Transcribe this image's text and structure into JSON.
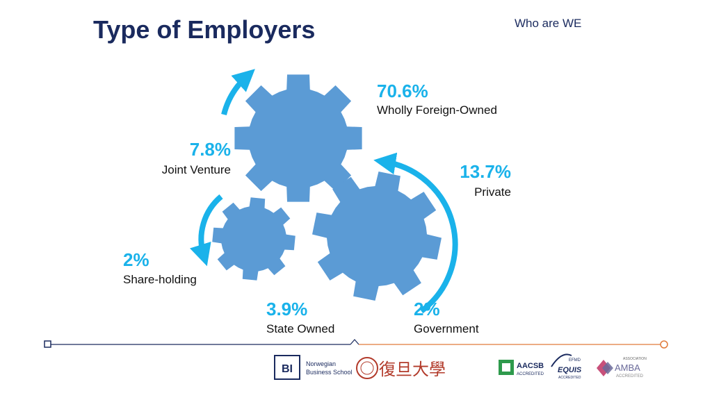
{
  "header": {
    "title": "Type of Employers",
    "section": "Who are WE"
  },
  "segments": [
    {
      "value": "70.6%",
      "label": "Wholly Foreign-Owned"
    },
    {
      "value": "13.7%",
      "label": "Private"
    },
    {
      "value": "7.8%",
      "label": "Joint Venture"
    },
    {
      "value": "2%",
      "label": "Share-holding"
    },
    {
      "value": "3.9%",
      "label": "State Owned"
    },
    {
      "value": "2%",
      "label": "Government"
    }
  ],
  "footer": {
    "bi_mark": "BI",
    "bi_name_line1": "Norwegian",
    "bi_name_line2": "Business School",
    "fudan_name": "復旦大學",
    "aacsb_name": "AACSB",
    "aacsb_sub": "ACCREDITED",
    "equis_top": "EFMD",
    "equis_name": "EQUIS",
    "equis_sub": "ACCREDITED",
    "amba_top": "ASSOCIATION",
    "amba_name": "AMBA",
    "amba_sub": "ACCREDITED"
  },
  "colors": {
    "title": "#1a2a5e",
    "gear": "#5b9bd5",
    "accent": "#1ab2ea",
    "line_left": "#1a2a5e",
    "line_right": "#e07a3a"
  }
}
